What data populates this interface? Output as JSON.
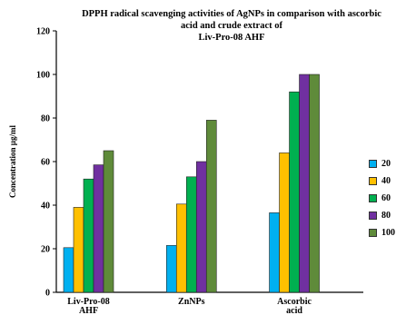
{
  "chart_data": {
    "type": "bar",
    "title_lines": [
      "DPPH radical scavenging activities of AgNPs in comparison with ascorbic",
      "acid and crude extract of",
      "Liv-Pro-08 AHF"
    ],
    "xlabel": "",
    "ylabel": "Concentration µg/ml",
    "ylim": [
      0,
      120
    ],
    "yticks": [
      "0",
      "20",
      "40",
      "60",
      "80",
      "100",
      "120"
    ],
    "categories": [
      "Liv-Pro-08 AHF",
      "ZnNPs",
      "Ascorbic acid"
    ],
    "series": [
      {
        "name": "20",
        "color": "#00b0f0",
        "values": [
          20.5,
          21.5,
          36.5
        ]
      },
      {
        "name": "40",
        "color": "#ffc000",
        "values": [
          39,
          40.5,
          64
        ]
      },
      {
        "name": "60",
        "color": "#00b050",
        "values": [
          52,
          53,
          92
        ]
      },
      {
        "name": "80",
        "color": "#7030a0",
        "values": [
          58.5,
          60,
          100
        ]
      },
      {
        "name": "100",
        "color": "#5f8b3a",
        "values": [
          65,
          79,
          100
        ]
      }
    ],
    "grid": false,
    "legend_position": "right"
  }
}
